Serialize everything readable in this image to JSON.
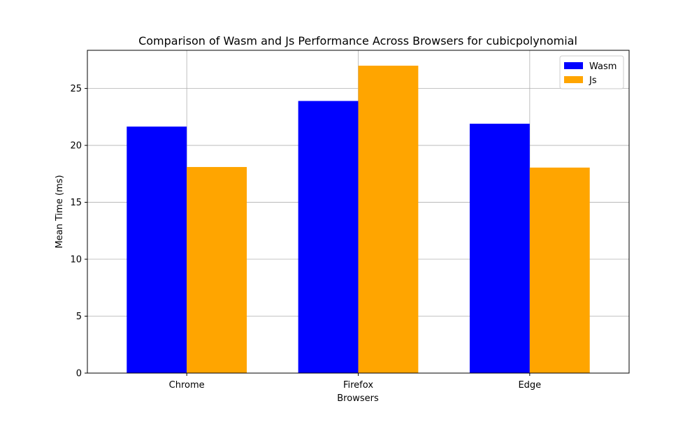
{
  "chart_data": {
    "type": "bar",
    "title": "Comparison of Wasm and Js Performance Across Browsers for cubicpolynomial",
    "xlabel": "Browsers",
    "ylabel": "Mean Time (ms)",
    "categories": [
      "Chrome",
      "Firefox",
      "Edge"
    ],
    "series": [
      {
        "name": "Wasm",
        "color": "#0000ff",
        "values": [
          21.65,
          23.9,
          21.9
        ]
      },
      {
        "name": "Js",
        "color": "#ffa500",
        "values": [
          18.1,
          27.0,
          18.05
        ]
      }
    ],
    "ylim": [
      0,
      28.35
    ],
    "yticks": [
      0,
      5,
      10,
      15,
      20,
      25
    ],
    "grid": true,
    "legend_position": "top-right"
  }
}
